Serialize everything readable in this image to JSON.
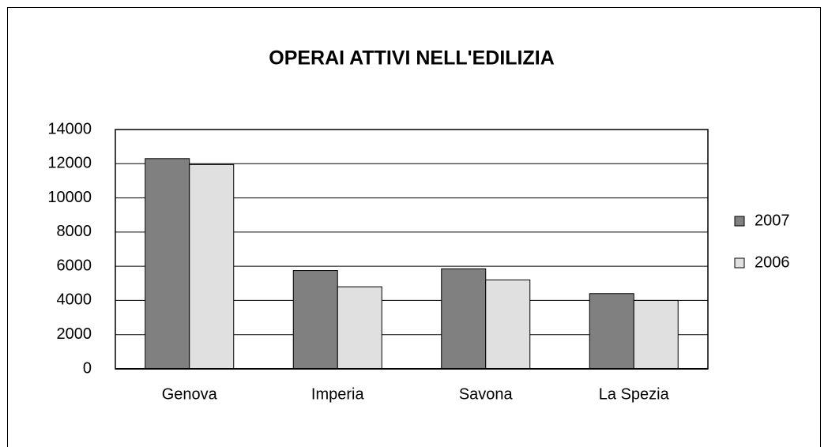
{
  "chart_data": {
    "type": "bar",
    "title": "OPERAI ATTIVI NELL'EDILIZIA",
    "categories": [
      "Genova",
      "Imperia",
      "Savona",
      "La Spezia"
    ],
    "series": [
      {
        "name": "2007",
        "color": "#808080",
        "values": [
          12300,
          5750,
          5850,
          4400
        ]
      },
      {
        "name": "2006",
        "color": "#e0e0e0",
        "values": [
          11950,
          4800,
          5200,
          4000
        ]
      }
    ],
    "ylim": [
      0,
      14000
    ],
    "yticks": [
      0,
      2000,
      4000,
      6000,
      8000,
      10000,
      12000,
      14000
    ],
    "grid": true,
    "legend": "right"
  }
}
